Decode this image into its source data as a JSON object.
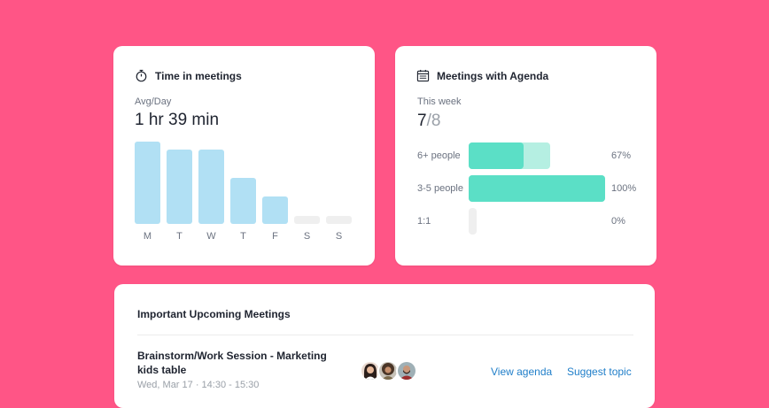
{
  "time_card": {
    "title": "Time in meetings",
    "icon": "stopwatch-icon",
    "avg_label": "Avg/Day",
    "avg_value": "1 hr 39 min",
    "days": [
      "M",
      "T",
      "W",
      "T",
      "F",
      "S",
      "S"
    ],
    "bar_levels": [
      1.0,
      0.9,
      0.9,
      0.56,
      0.33,
      0.1,
      0.1
    ],
    "bar_colors": {
      "filled": "#b1e0f4",
      "empty": "#efefef"
    }
  },
  "agenda_card": {
    "title": "Meetings with Agenda",
    "icon": "calendar-icon",
    "period_label": "This week",
    "ratio_num": "7",
    "ratio_den": "/8",
    "rows": [
      {
        "label": "6+ people",
        "pct_text": "67%",
        "filled": 0.4,
        "total": 0.6
      },
      {
        "label": "3-5 people",
        "pct_text": "100%",
        "filled": 1.0,
        "total": 1.0
      },
      {
        "label": "1:1",
        "pct_text": "0%",
        "filled": 0,
        "total": 0
      }
    ],
    "colors": {
      "filled": "#5bdfc6",
      "remaining": "#b5efe2",
      "empty": "#efefef"
    }
  },
  "upcoming_card": {
    "title": "Important Upcoming Meetings",
    "meeting": {
      "title": "Brainstorm/Work Session - Marketing kids table",
      "time": "Wed, Mar 17 · 14:30 - 15:30",
      "attendee_avatars": [
        "avatar-woman-dark-hair",
        "avatar-woman-curly-hair",
        "avatar-man-beard"
      ],
      "view_agenda_label": "View agenda",
      "suggest_topic_label": "Suggest topic"
    }
  },
  "colors": {
    "background": "#ff5586",
    "link": "#1f7ec9"
  }
}
